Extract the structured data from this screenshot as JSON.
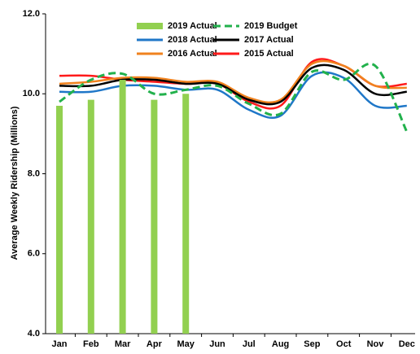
{
  "chart_data": {
    "type": "combo",
    "y_label": "Average Weekly Ridership (Millions)",
    "categories": [
      "Jan",
      "Feb",
      "Mar",
      "Apr",
      "May",
      "Jun",
      "Jul",
      "Aug",
      "Sep",
      "Oct",
      "Nov",
      "Dec"
    ],
    "ylim": [
      4,
      12
    ],
    "yticks": [
      {
        "value": 4,
        "label": "4.0"
      },
      {
        "value": 6,
        "label": "6.0"
      },
      {
        "value": 8,
        "label": "8.0"
      },
      {
        "value": 10,
        "label": "10.0"
      },
      {
        "value": 12,
        "label": "12.0"
      }
    ],
    "series": [
      {
        "name": "2019 Actual",
        "type": "bar",
        "color": "#92d050",
        "values": [
          9.7,
          9.85,
          10.35,
          9.85,
          10.0,
          null,
          null,
          null,
          null,
          null,
          null,
          null
        ]
      },
      {
        "name": "2019 Budget",
        "type": "line",
        "dashed": true,
        "color": "#22b14c",
        "values": [
          9.8,
          10.35,
          10.5,
          10.0,
          10.1,
          10.2,
          9.75,
          9.5,
          10.55,
          10.35,
          10.7,
          9.05
        ]
      },
      {
        "name": "2018 Actual",
        "type": "line",
        "color": "#1f77c8",
        "values": [
          10.05,
          10.05,
          10.2,
          10.2,
          10.1,
          10.1,
          9.6,
          9.45,
          10.45,
          10.4,
          9.7,
          9.7
        ]
      },
      {
        "name": "2017 Actual",
        "type": "line",
        "color": "#000000",
        "values": [
          10.2,
          10.2,
          10.35,
          10.35,
          10.25,
          10.25,
          9.85,
          9.8,
          10.65,
          10.6,
          10.0,
          10.05
        ]
      },
      {
        "name": "2016 Actual",
        "type": "line",
        "color": "#f0821e",
        "values": [
          10.25,
          10.3,
          10.4,
          10.4,
          10.3,
          10.3,
          9.9,
          9.85,
          10.75,
          10.7,
          10.2,
          10.15
        ]
      },
      {
        "name": "2015 Actual",
        "type": "line",
        "color": "#ff1a1a",
        "values": [
          10.45,
          10.45,
          10.35,
          10.3,
          10.25,
          10.25,
          9.8,
          9.7,
          10.8,
          10.7,
          10.2,
          10.25
        ]
      }
    ]
  }
}
